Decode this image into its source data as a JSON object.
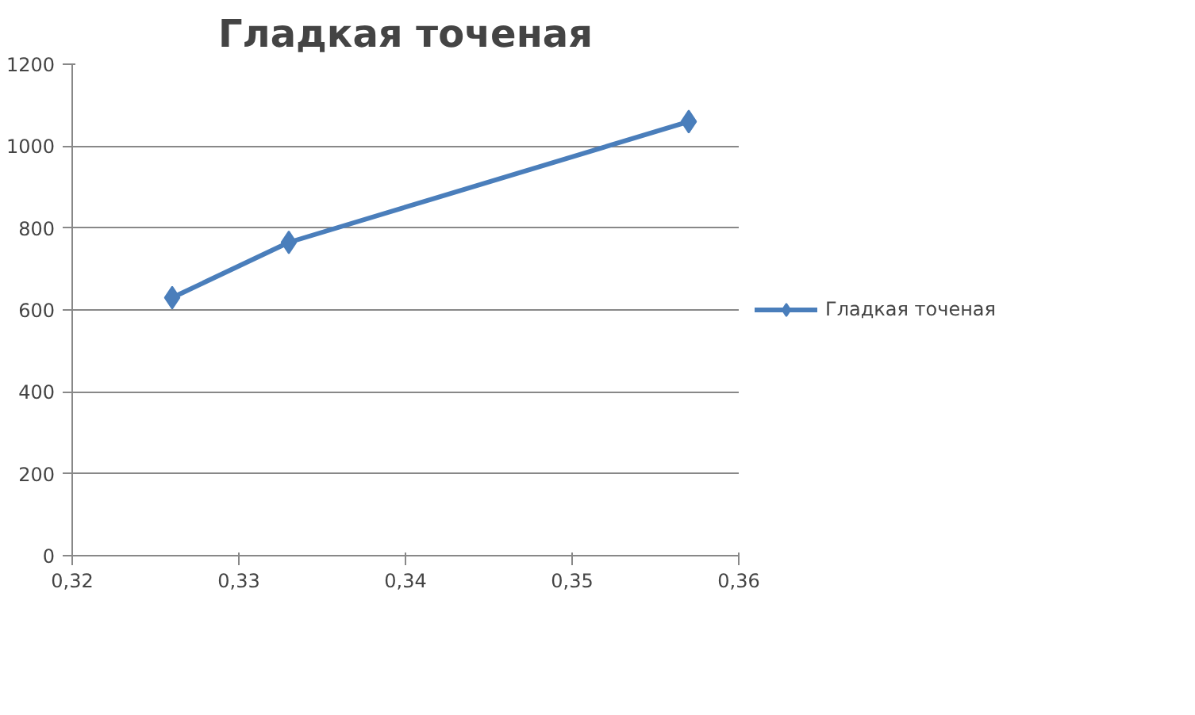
{
  "chart_data": {
    "type": "line",
    "title": "Гладкая точеная",
    "x": [
      0.326,
      0.333,
      0.357
    ],
    "series": [
      {
        "name": "Гладкая точеная",
        "color": "#4a7ebb",
        "values": [
          630,
          765,
          1060
        ]
      }
    ],
    "xlim": [
      0.32,
      0.36
    ],
    "xticks": [
      {
        "value": 0.32,
        "label": "0,32"
      },
      {
        "value": 0.33,
        "label": "0,33"
      },
      {
        "value": 0.34,
        "label": "0,34"
      },
      {
        "value": 0.35,
        "label": "0,35"
      },
      {
        "value": 0.36,
        "label": "0,36"
      }
    ],
    "ylim": [
      0,
      1200
    ],
    "yticks": [
      0,
      200,
      400,
      600,
      800,
      1000,
      1200
    ],
    "grid": "y",
    "legend": "right",
    "marker": "diamond",
    "line_style": "solid"
  }
}
